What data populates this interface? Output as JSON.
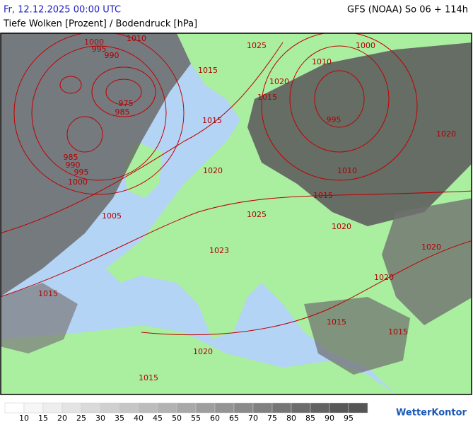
{
  "header": {
    "left": "Fr, 12.12.2025 00:00 UTC",
    "right": "GFS (NOAA) So 06 + 114h",
    "subtitle": "Tiefe Wolken [Prozent] / Bodendruck [hPa]"
  },
  "isobar_labels": [
    "1010",
    "1000",
    "995",
    "990",
    "1025",
    "1000",
    "1010",
    "1015",
    "1020",
    "1015",
    "975",
    "985",
    "995",
    "1015",
    "985",
    "990",
    "995",
    "1000",
    "1020",
    "1020",
    "1010",
    "1015",
    "1025",
    "1005",
    "1020",
    "1023",
    "1020",
    "1020",
    "1015",
    "1015",
    "1015",
    "1020",
    "1015"
  ],
  "legend": {
    "labels": [
      10,
      15,
      20,
      25,
      30,
      35,
      40,
      45,
      50,
      55,
      60,
      65,
      70,
      75,
      80,
      85,
      90,
      95
    ],
    "colors": [
      "#ffffff",
      "#f6f6f6",
      "#eeeeee",
      "#e4e4e4",
      "#dadada",
      "#d0d0d0",
      "#c6c6c6",
      "#bcbcbc",
      "#b2b2b2",
      "#a8a8a8",
      "#9e9e9e",
      "#949494",
      "#8a8a8a",
      "#808080",
      "#767676",
      "#6c6c6c",
      "#626262",
      "#585858",
      "#555555"
    ]
  },
  "logo": "WetterKontor"
}
